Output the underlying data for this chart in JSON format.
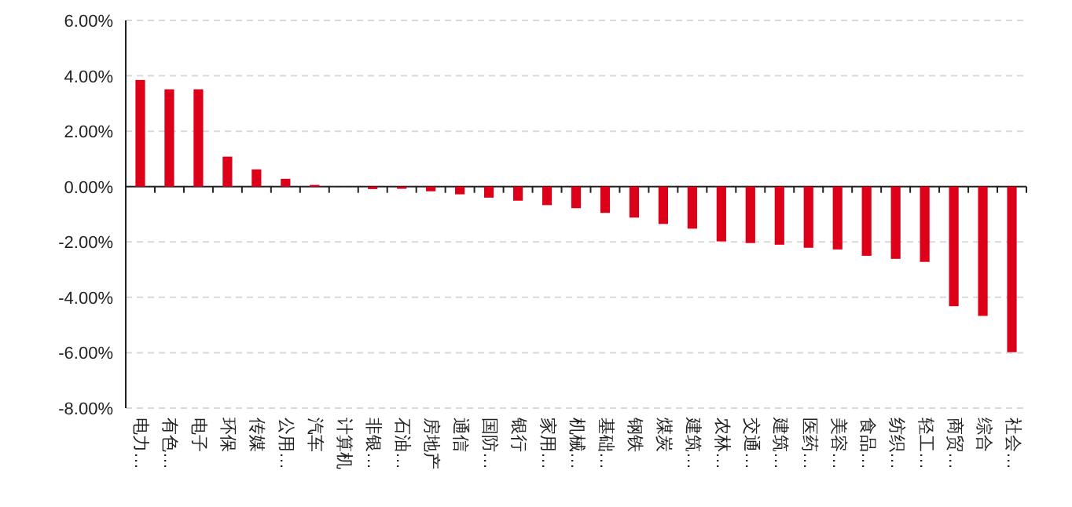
{
  "chart_data": {
    "type": "bar",
    "categories": [
      "电力…",
      "有色…",
      "电子",
      "环保",
      "传媒",
      "公用…",
      "汽车",
      "计算机",
      "非银…",
      "石油…",
      "房地产",
      "通信",
      "国防…",
      "银行",
      "家用…",
      "机械…",
      "基础…",
      "钢铁",
      "煤炭",
      "建筑…",
      "农林…",
      "交通…",
      "建筑…",
      "医药…",
      "美容…",
      "食品…",
      "纺织…",
      "轻工…",
      "商贸…",
      "综合",
      "社会…"
    ],
    "values": [
      3.85,
      3.51,
      3.51,
      1.08,
      0.62,
      0.28,
      0.06,
      0.0,
      -0.09,
      -0.08,
      -0.17,
      -0.28,
      -0.4,
      -0.51,
      -0.67,
      -0.78,
      -0.95,
      -1.12,
      -1.35,
      -1.52,
      -1.98,
      -2.04,
      -2.1,
      -2.21,
      -2.27,
      -2.5,
      -2.61,
      -2.72,
      -4.32,
      -4.67,
      -5.98
    ],
    "color": "#dc0018",
    "ylim": [
      -8,
      6
    ],
    "yticks": [
      {
        "value": -8,
        "label": "-8.00%"
      },
      {
        "value": -6,
        "label": "-6.00%"
      },
      {
        "value": -4,
        "label": "-4.00%"
      },
      {
        "value": -2,
        "label": "-2.00%"
      },
      {
        "value": 0,
        "label": "0.00%"
      },
      {
        "value": 2,
        "label": "2.00%"
      },
      {
        "value": 4,
        "label": "4.00%"
      },
      {
        "value": 6,
        "label": "6.00%"
      }
    ],
    "grid": "y"
  }
}
